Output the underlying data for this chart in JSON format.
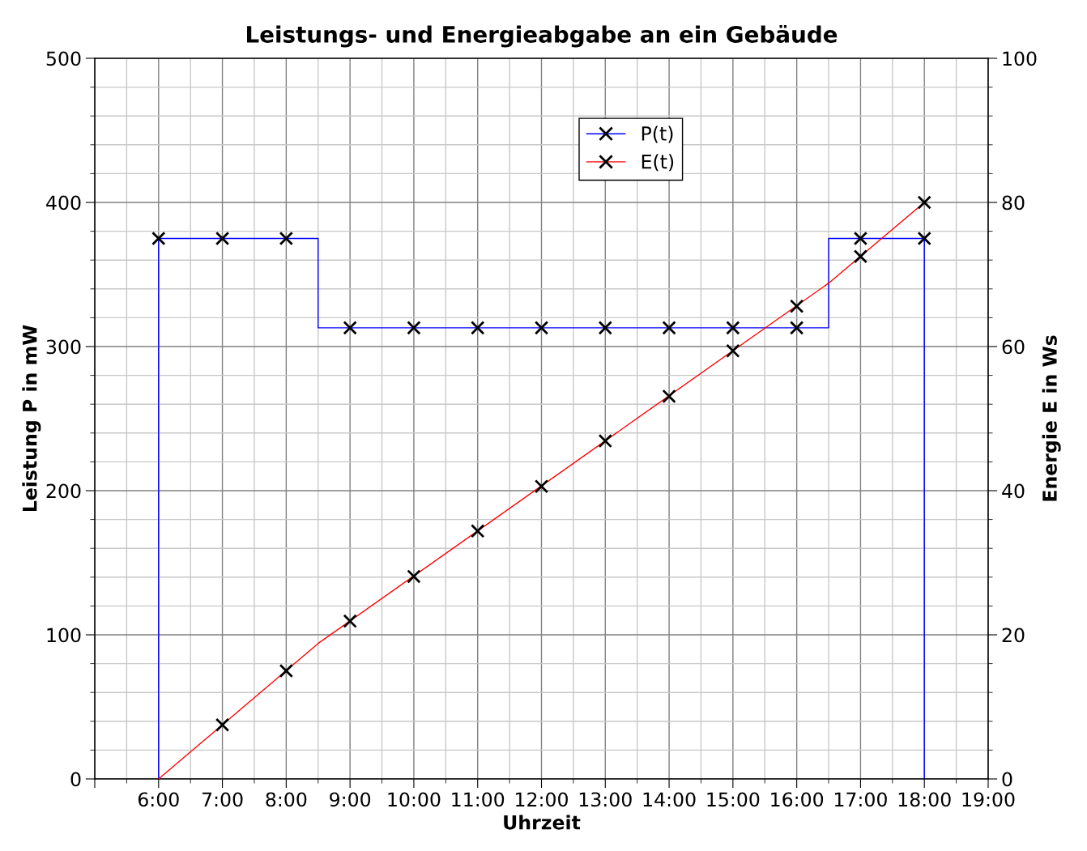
{
  "chart_data": {
    "type": "line",
    "title": "Leistungs- und Energieabgabe an ein Gebäude",
    "xlabel": "Uhrzeit",
    "ylabel": "Leistung P in mW",
    "y2label": "Energie E in Ws",
    "xlim": [
      5,
      19
    ],
    "xticks": [
      {
        "value": 5,
        "label": null
      },
      {
        "value": 6,
        "label": "6:00"
      },
      {
        "value": 7,
        "label": "7:00"
      },
      {
        "value": 8,
        "label": "8:00"
      },
      {
        "value": 9,
        "label": "9:00"
      },
      {
        "value": 10,
        "label": "10:00"
      },
      {
        "value": 11,
        "label": "11:00"
      },
      {
        "value": 12,
        "label": "12:00"
      },
      {
        "value": 13,
        "label": "13:00"
      },
      {
        "value": 14,
        "label": "14:00"
      },
      {
        "value": 15,
        "label": "15:00"
      },
      {
        "value": 16,
        "label": "16:00"
      },
      {
        "value": 17,
        "label": "17:00"
      },
      {
        "value": 18,
        "label": "18:00"
      },
      {
        "value": 19,
        "label": "19:00"
      }
    ],
    "ylim": [
      0,
      500
    ],
    "yticks": [
      0,
      100,
      200,
      300,
      400,
      500
    ],
    "y2lim": [
      0,
      100
    ],
    "y2ticks": [
      0,
      20,
      40,
      60,
      80,
      100
    ],
    "grid": true,
    "legend": "top",
    "series": [
      {
        "name": "P(t)",
        "color": "#0000ff",
        "marker": "none",
        "x": [
          6,
          6,
          8.5,
          8.5,
          16.5,
          16.5,
          18,
          18
        ],
        "values": [
          0,
          375,
          375,
          313,
          313,
          375,
          375,
          0
        ]
      },
      {
        "type": "scatter",
        "color": "#000000",
        "marker": "cross",
        "x": [
          6,
          7,
          8,
          9,
          10,
          11,
          12,
          13,
          14,
          15,
          16,
          17,
          18
        ],
        "values": [
          375,
          375,
          375,
          313,
          313,
          313,
          313,
          313,
          313,
          313,
          313,
          375,
          375
        ]
      },
      {
        "name": "E(t)",
        "axis": "y2",
        "color": "#ff0000",
        "marker": "none",
        "x": [
          6,
          8.5,
          16.5,
          18
        ],
        "values": [
          0,
          18.8,
          68.8,
          80
        ]
      },
      {
        "type": "scatter",
        "axis": "y2",
        "color": "#000000",
        "marker": "cross",
        "x": [
          7,
          8,
          9,
          10,
          11,
          12,
          13,
          14,
          15,
          16,
          17,
          18
        ],
        "values": [
          7.5,
          15,
          21.9,
          28.1,
          34.4,
          40.6,
          46.9,
          53.1,
          59.4,
          65.6,
          72.5,
          80
        ]
      }
    ]
  }
}
